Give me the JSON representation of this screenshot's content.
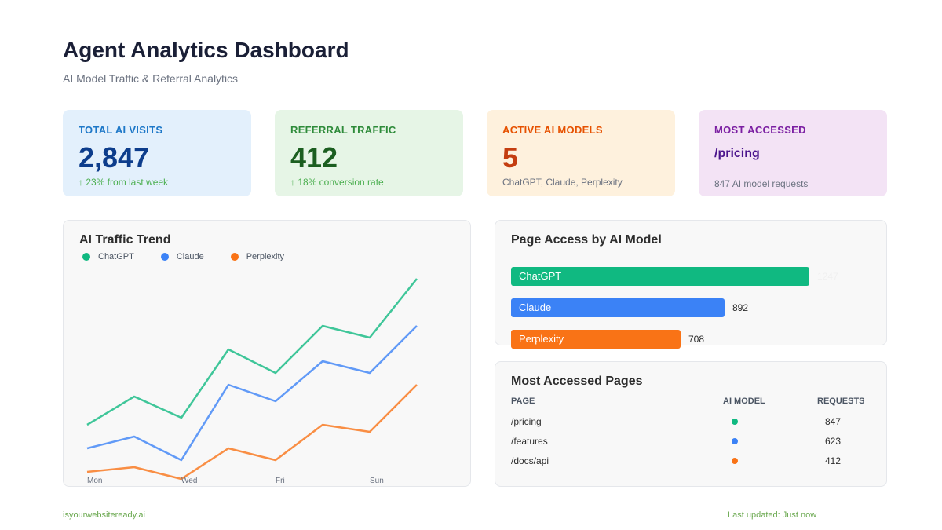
{
  "header": {
    "title": "Agent Analytics Dashboard",
    "subtitle": "AI Model Traffic & Referral Analytics"
  },
  "cards": [
    {
      "label": "TOTAL AI VISITS",
      "value": "2,847",
      "note": "↑ 23% from last week"
    },
    {
      "label": "REFERRAL TRAFFIC",
      "value": "412",
      "note": "↑ 18% conversion rate"
    },
    {
      "label": "ACTIVE AI MODELS",
      "value": "5",
      "note": "ChatGPT, Claude, Perplexity"
    },
    {
      "label": "MOST ACCESSED",
      "value": "/pricing",
      "note": "847 AI model requests"
    }
  ],
  "trend": {
    "title": "AI Traffic Trend",
    "legend": [
      "ChatGPT",
      "Claude",
      "Perplexity"
    ],
    "x_labels": [
      "Mon",
      "Wed",
      "Fri",
      "Sun"
    ]
  },
  "chart_data": {
    "type": "line",
    "title": "AI Traffic Trend",
    "x": [
      "Mon",
      "",
      "Wed",
      "",
      "Fri",
      "",
      "Sun",
      ""
    ],
    "ylim": [
      0,
      100
    ],
    "grid": false,
    "legend_position": "top-left",
    "series": [
      {
        "name": "ChatGPT",
        "color": "#10b981",
        "values": [
          25,
          37,
          28,
          57,
          47,
          67,
          62,
          87
        ]
      },
      {
        "name": "Claude",
        "color": "#3b82f6",
        "values": [
          15,
          20,
          10,
          42,
          35,
          52,
          47,
          67
        ]
      },
      {
        "name": "Perplexity",
        "color": "#f97316",
        "values": [
          5,
          7,
          2,
          15,
          10,
          25,
          22,
          42
        ]
      }
    ]
  },
  "access": {
    "title": "Page Access by AI Model",
    "max": 1247,
    "bars": [
      {
        "name": "ChatGPT",
        "value": 1247,
        "count_label": "1247",
        "color": "#10b981"
      },
      {
        "name": "Claude",
        "value": 892,
        "count_label": "892",
        "color": "#3b82f6"
      },
      {
        "name": "Perplexity",
        "value": 708,
        "count_label": "708",
        "color": "#f97316"
      }
    ]
  },
  "pages": {
    "title": "Most Accessed Pages",
    "columns": [
      "PAGE",
      "AI MODEL",
      "REQUESTS"
    ],
    "rows": [
      {
        "page": "/pricing",
        "model_color": "#10b981",
        "requests": "847"
      },
      {
        "page": "/features",
        "model_color": "#3b82f6",
        "requests": "623"
      },
      {
        "page": "/docs/api",
        "model_color": "#f97316",
        "requests": "412"
      }
    ]
  },
  "footer": {
    "site": "isyourwebsiteready.ai",
    "updated": "Last updated: Just now"
  }
}
